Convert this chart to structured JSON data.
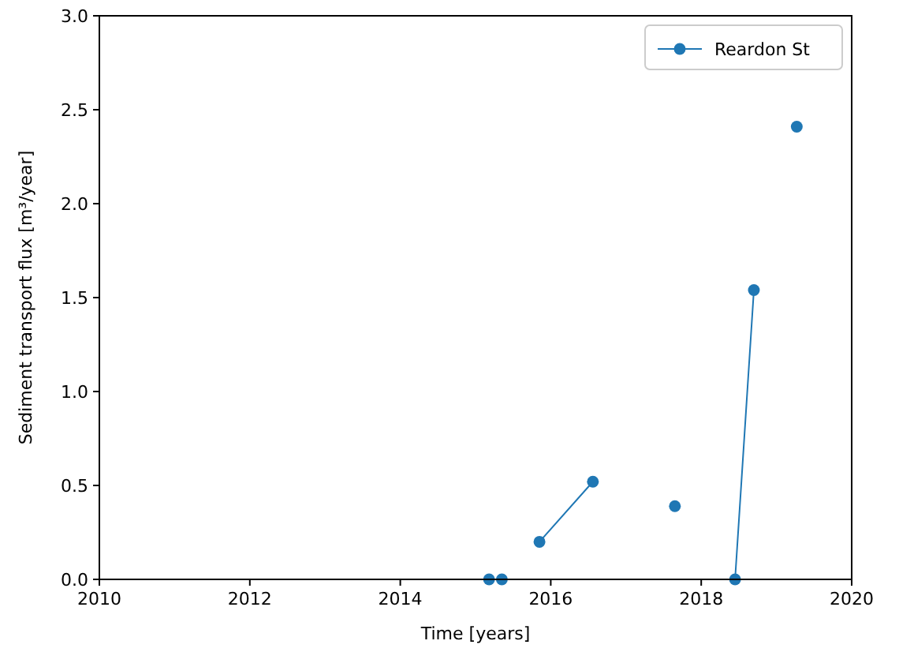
{
  "chart_data": {
    "type": "line",
    "xlabel": "Time [years]",
    "ylabel": "Sediment transport flux [m³/year]",
    "xlim": [
      2010,
      2020
    ],
    "xticks": [
      2010,
      2012,
      2014,
      2016,
      2018,
      2020
    ],
    "ylim": [
      0,
      3.0
    ],
    "yticks": [
      {
        "value": 0,
        "label": "0.0"
      },
      {
        "value": 0.5,
        "label": "0.5"
      },
      {
        "value": 1,
        "label": "1.0"
      },
      {
        "value": 1.5,
        "label": "1.5"
      },
      {
        "value": 2,
        "label": "2.0"
      },
      {
        "value": 2.5,
        "label": "2.5"
      },
      {
        "value": 3,
        "label": "3.0"
      }
    ],
    "series": [
      {
        "name": "Reardon St",
        "color": "#1f77b4",
        "x": [
          2015.18,
          2015.35,
          2015.6,
          2015.85,
          2016.56,
          2017.1,
          2017.65,
          2018.0,
          2018.45,
          2018.7,
          2019.0,
          2019.27
        ],
        "values": [
          0,
          0,
          null,
          0.2,
          0.52,
          null,
          0.39,
          null,
          0,
          1.54,
          null,
          2.41
        ]
      }
    ],
    "legend": "top right",
    "marker": "circle",
    "line_style": "solid",
    "grid": false
  }
}
